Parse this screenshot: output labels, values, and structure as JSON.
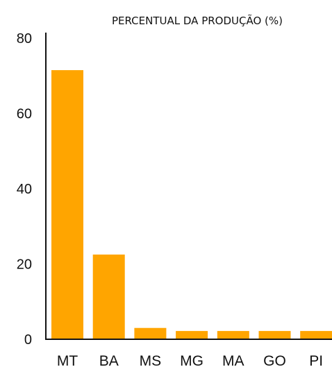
{
  "chart_data": {
    "type": "bar",
    "title": "PERCENTUAL DA PRODUÇÃO (%)",
    "xlabel": "",
    "ylabel": "",
    "categories": [
      "MT",
      "BA",
      "MS",
      "MG",
      "MA",
      "GO",
      "PI"
    ],
    "values": [
      71.5,
      22.5,
      3,
      2.2,
      2.2,
      2.2,
      2.2
    ],
    "ylim": [
      0,
      80
    ],
    "yticks": [
      "0",
      "20",
      "40",
      "60",
      "80"
    ],
    "grid": false,
    "legend": "none",
    "bar_color": "#FFA500"
  }
}
